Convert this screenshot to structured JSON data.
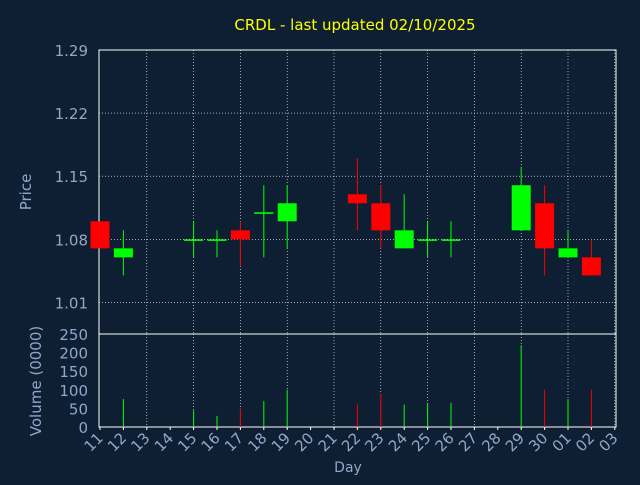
{
  "chart_data": {
    "type": "candlestick",
    "title": "CRDL - last updated 02/10/2025",
    "xlabel": "Day",
    "price_ylabel": "Price",
    "volume_ylabel": "Volume (0000)",
    "categories": [
      "11",
      "12",
      "13",
      "14",
      "15",
      "16",
      "17",
      "18",
      "19",
      "20",
      "21",
      "22",
      "23",
      "24",
      "25",
      "26",
      "27",
      "28",
      "29",
      "30",
      "01",
      "02",
      "03"
    ],
    "price_ylim": [
      0.975,
      1.29
    ],
    "price_yticks": [
      "1.29",
      "1.22",
      "1.15",
      "1.08",
      "1.01"
    ],
    "price_ytick_values": [
      1.29,
      1.22,
      1.15,
      1.08,
      1.01
    ],
    "volume_ylim": [
      0,
      250
    ],
    "volume_yticks": [
      "250",
      "200",
      "150",
      "100",
      "50",
      "0"
    ],
    "volume_ytick_values": [
      250,
      200,
      150,
      100,
      50,
      0
    ],
    "grid": true,
    "up_color": "#00ff00",
    "down_color": "#ff0000",
    "candles": [
      {
        "day": "11",
        "open": 1.1,
        "high": 1.1,
        "low": 1.07,
        "close": 1.07,
        "volume": 0
      },
      {
        "day": "12",
        "open": 1.06,
        "high": 1.09,
        "low": 1.04,
        "close": 1.07,
        "volume": 75
      },
      {
        "day": "15",
        "open": 1.08,
        "high": 1.1,
        "low": 1.06,
        "close": 1.08,
        "volume": 45
      },
      {
        "day": "16",
        "open": 1.08,
        "high": 1.09,
        "low": 1.06,
        "close": 1.08,
        "volume": 30
      },
      {
        "day": "17",
        "open": 1.09,
        "high": 1.1,
        "low": 1.05,
        "close": 1.08,
        "volume": 50
      },
      {
        "day": "18",
        "open": 1.11,
        "high": 1.14,
        "low": 1.06,
        "close": 1.11,
        "volume": 70
      },
      {
        "day": "19",
        "open": 1.1,
        "high": 1.14,
        "low": 1.07,
        "close": 1.12,
        "volume": 100
      },
      {
        "day": "22",
        "open": 1.13,
        "high": 1.17,
        "low": 1.09,
        "close": 1.12,
        "volume": 60
      },
      {
        "day": "23",
        "open": 1.12,
        "high": 1.14,
        "low": 1.07,
        "close": 1.09,
        "volume": 90
      },
      {
        "day": "24",
        "open": 1.07,
        "high": 1.13,
        "low": 1.07,
        "close": 1.09,
        "volume": 60
      },
      {
        "day": "25",
        "open": 1.08,
        "high": 1.1,
        "low": 1.06,
        "close": 1.08,
        "volume": 65
      },
      {
        "day": "26",
        "open": 1.08,
        "high": 1.1,
        "low": 1.06,
        "close": 1.08,
        "volume": 65
      },
      {
        "day": "29",
        "open": 1.09,
        "high": 1.16,
        "low": 1.09,
        "close": 1.14,
        "volume": 220
      },
      {
        "day": "30",
        "open": 1.12,
        "high": 1.14,
        "low": 1.04,
        "close": 1.07,
        "volume": 100
      },
      {
        "day": "01",
        "open": 1.06,
        "high": 1.09,
        "low": 1.06,
        "close": 1.07,
        "volume": 75
      },
      {
        "day": "02",
        "open": 1.06,
        "high": 1.08,
        "low": 1.04,
        "close": 1.04,
        "volume": 100
      }
    ]
  },
  "colors": {
    "background": "#0f1f33",
    "title": "#ffff00",
    "axis_text": "#8fa8c8",
    "grid": "#ffffff",
    "frame": "#ffffff"
  }
}
